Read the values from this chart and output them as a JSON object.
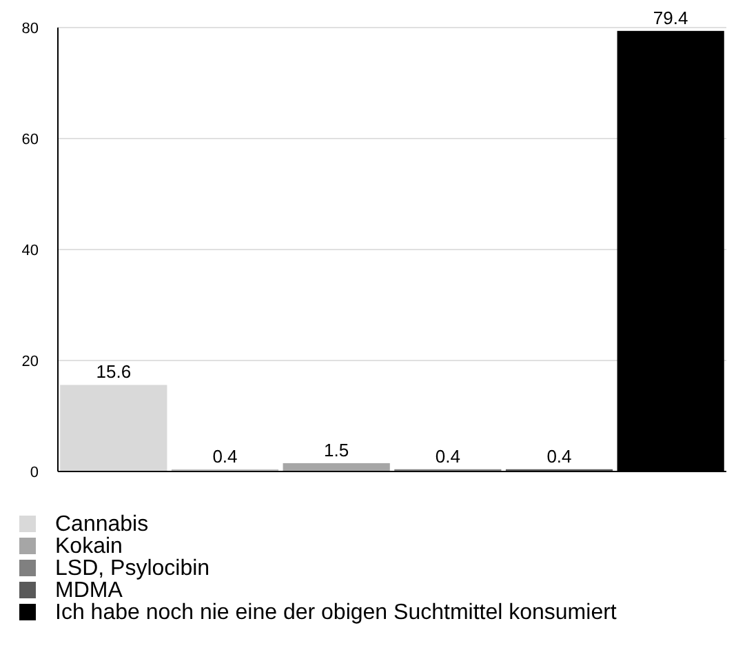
{
  "chart_data": {
    "type": "bar",
    "categories": [
      null,
      null,
      null,
      null,
      null,
      null
    ],
    "series": [
      {
        "name": "Cannabis",
        "color": "#d9d9d9",
        "values": [
          15.6,
          null,
          null,
          null,
          null,
          null
        ]
      },
      {
        "color": "#bfbfbf",
        "values": [
          null,
          0.4,
          null,
          null,
          null,
          null
        ]
      },
      {
        "name": "Kokain",
        "color": "#a6a6a6",
        "values": [
          null,
          null,
          1.5,
          null,
          null,
          null
        ]
      },
      {
        "name": "LSD, Psylocibin",
        "color": "#808080",
        "values": [
          null,
          null,
          null,
          0.4,
          null,
          null
        ]
      },
      {
        "name": "MDMA",
        "color": "#595959",
        "values": [
          null,
          null,
          null,
          null,
          0.4,
          null
        ]
      },
      {
        "name": "Ich habe noch nie eine der obigen Suchtmittel konsumiert",
        "color": "#000000",
        "values": [
          null,
          null,
          null,
          null,
          null,
          79.4
        ]
      }
    ],
    "ylim": [
      0,
      80
    ],
    "yticks": [
      0,
      20,
      40,
      60,
      80
    ],
    "grid": "y",
    "data_labels": true,
    "legend": "bottom"
  }
}
